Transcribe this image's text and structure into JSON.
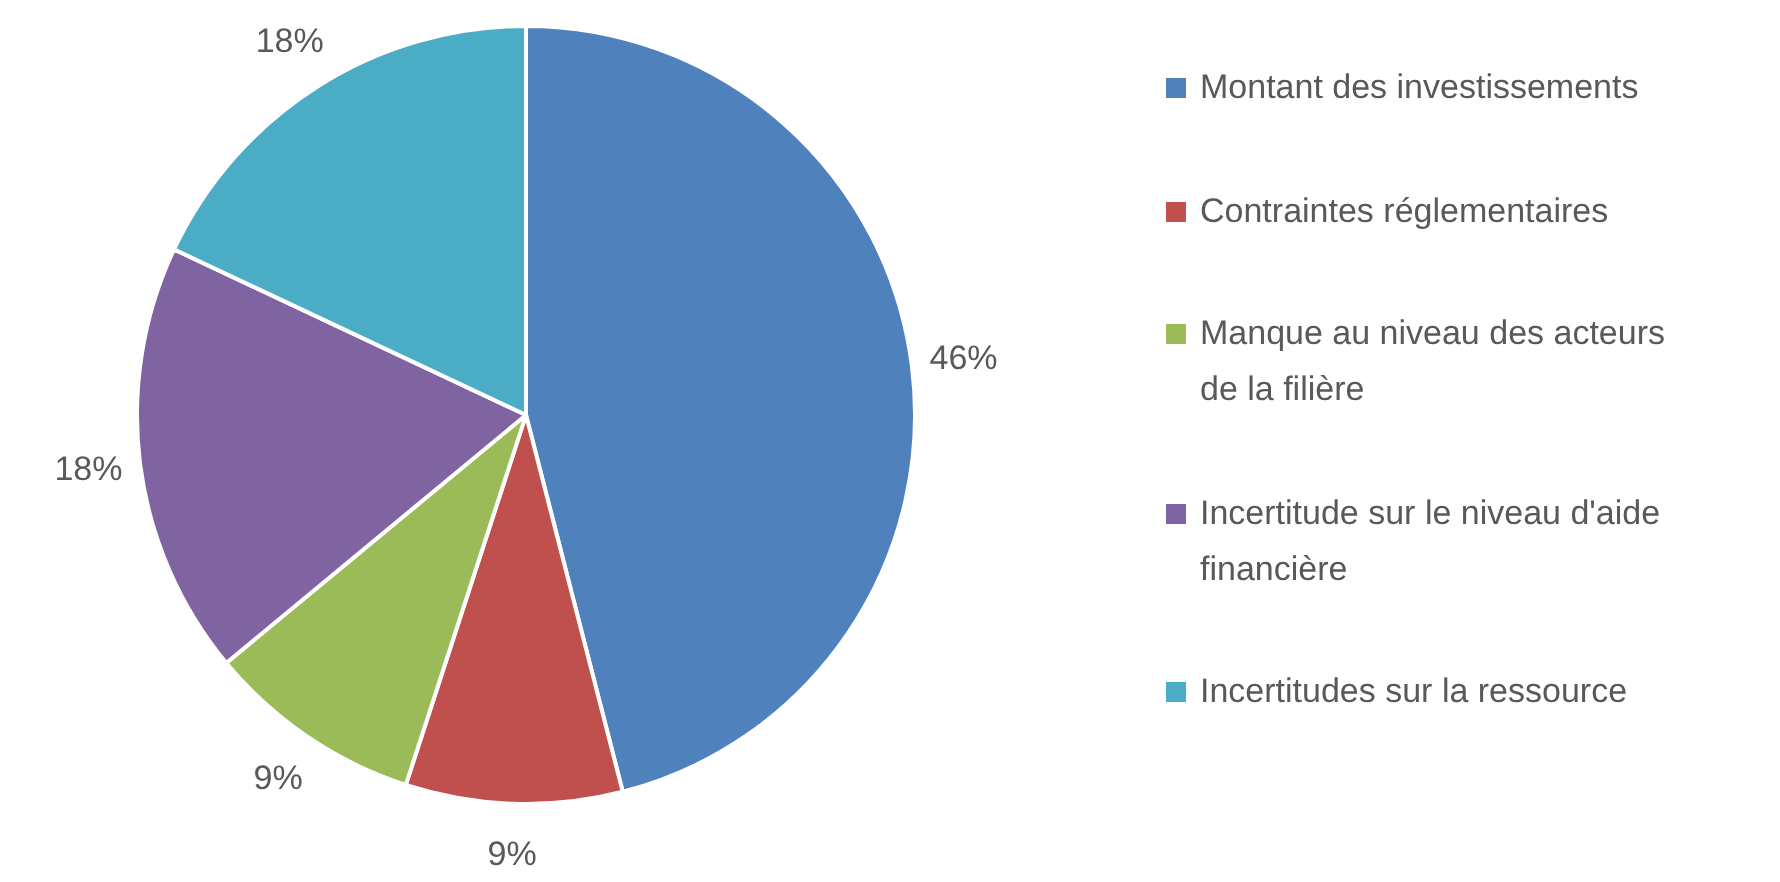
{
  "chart_data": {
    "type": "pie",
    "categories": [
      "Montant des investissements",
      "Contraintes réglementaires",
      "Manque au niveau des acteurs de la filière",
      "Incertitude sur le niveau d'aide financière",
      "Incertitudes sur la ressource"
    ],
    "values": [
      46,
      9,
      9,
      18,
      18
    ],
    "colors": [
      "#4f81bd",
      "#c0504d",
      "#9bbb59",
      "#8064a2",
      "#4bacc6"
    ],
    "value_labels": [
      "46%",
      "9%",
      "9%",
      "18%",
      "18%"
    ],
    "legend": "right"
  }
}
